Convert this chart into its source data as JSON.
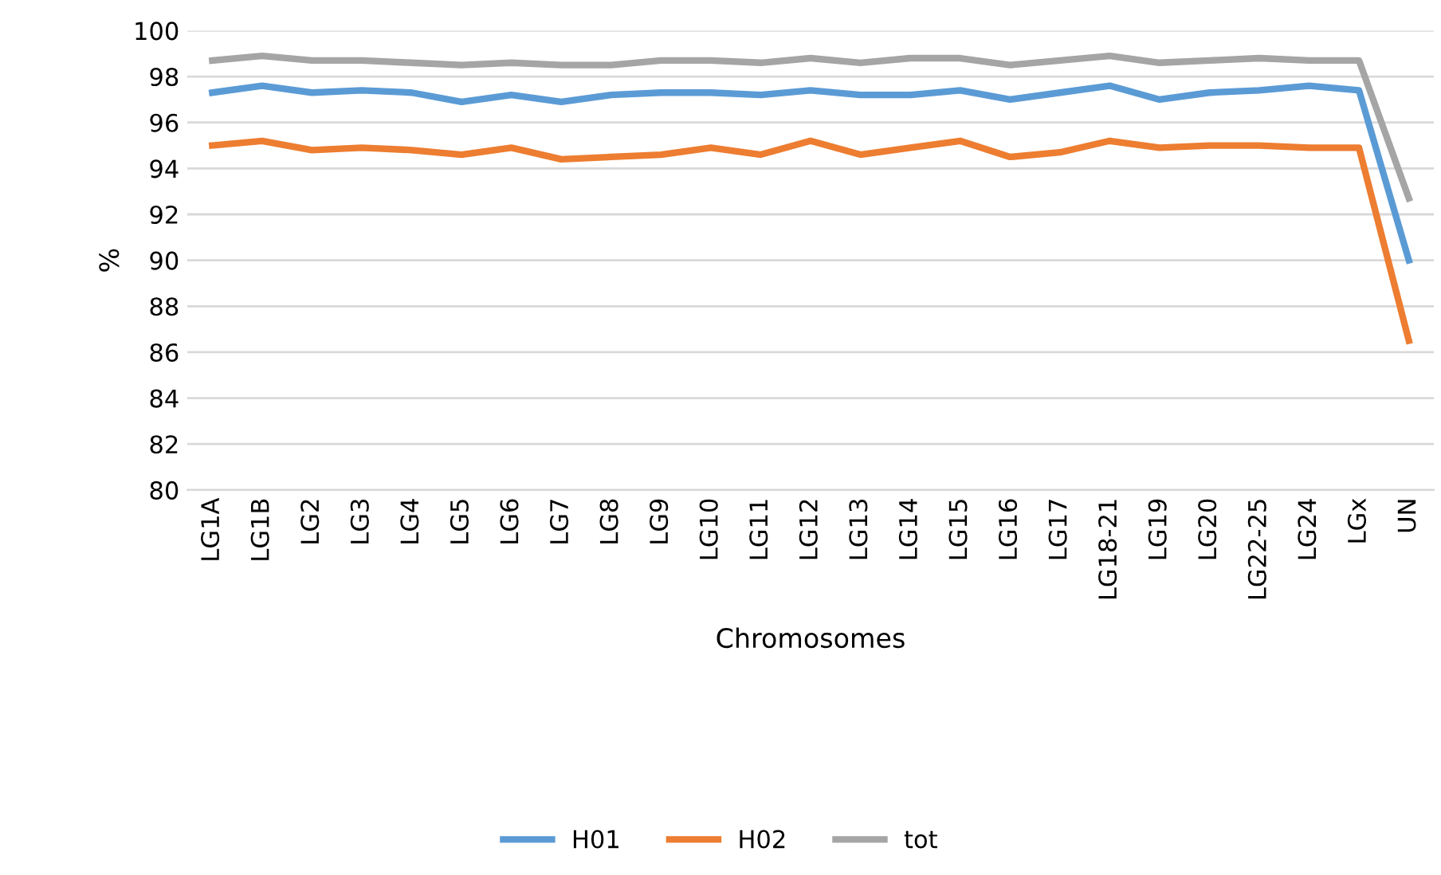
{
  "chart_data": {
    "type": "line",
    "xlabel": "Chromosomes",
    "ylabel": "%",
    "categories": [
      "LG1A",
      "LG1B",
      "LG2",
      "LG3",
      "LG4",
      "LG5",
      "LG6",
      "LG7",
      "LG8",
      "LG9",
      "LG10",
      "LG11",
      "LG12",
      "LG13",
      "LG14",
      "LG15",
      "LG16",
      "LG17",
      "LG18-21",
      "LG19",
      "LG20",
      "LG22-25",
      "LG24",
      "LGx",
      "UN"
    ],
    "series": [
      {
        "name": "H01",
        "color": "#5b9bd5",
        "values": [
          97.3,
          97.6,
          97.3,
          97.4,
          97.3,
          96.9,
          97.2,
          96.9,
          97.2,
          97.3,
          97.3,
          97.2,
          97.4,
          97.2,
          97.2,
          97.4,
          97.0,
          97.3,
          97.6,
          97.0,
          97.3,
          97.4,
          97.6,
          97.4,
          90.0
        ]
      },
      {
        "name": "H02",
        "color": "#ed7d31",
        "values": [
          95.0,
          95.2,
          94.8,
          94.9,
          94.8,
          94.6,
          94.9,
          94.4,
          94.5,
          94.6,
          94.9,
          94.6,
          95.2,
          94.6,
          94.9,
          95.2,
          94.5,
          94.7,
          95.2,
          94.9,
          95.0,
          95.0,
          94.9,
          94.9,
          86.5
        ]
      },
      {
        "name": "tot",
        "color": "#a5a5a5",
        "values": [
          98.7,
          98.9,
          98.7,
          98.7,
          98.6,
          98.5,
          98.6,
          98.5,
          98.5,
          98.7,
          98.7,
          98.6,
          98.8,
          98.6,
          98.8,
          98.8,
          98.5,
          98.7,
          98.9,
          98.6,
          98.7,
          98.8,
          98.7,
          98.7,
          92.7
        ]
      }
    ],
    "ylim": [
      80,
      100
    ],
    "yticks": [
      80,
      82,
      84,
      86,
      88,
      90,
      92,
      94,
      96,
      98,
      100
    ],
    "grid": "y",
    "legend": "bottom",
    "marker": "none",
    "line_style": "solid"
  }
}
